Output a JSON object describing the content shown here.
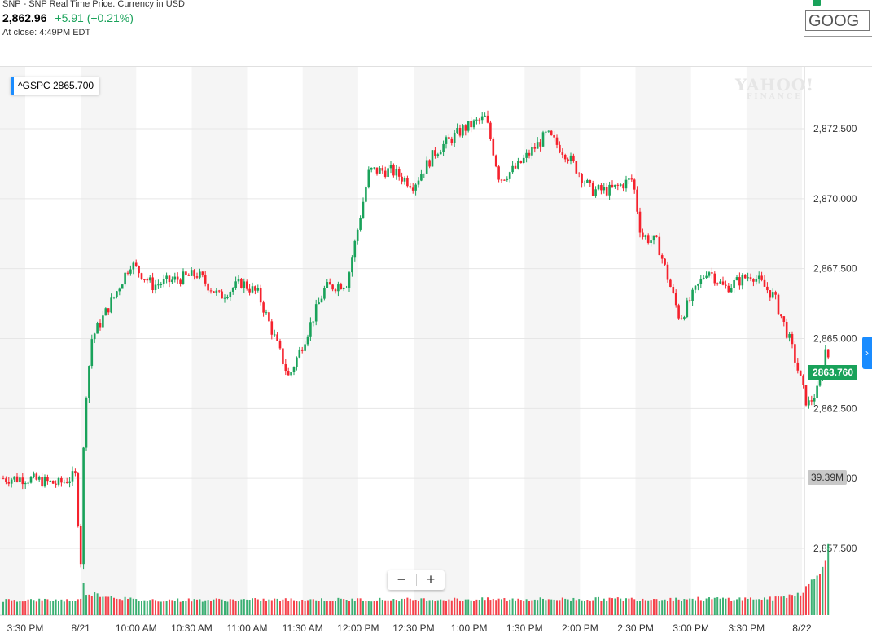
{
  "header": {
    "title_line": "SNP - SNP Real Time Price. Currency in USD",
    "price": "2,862.96",
    "change": "+5.91 (+0.21%)",
    "close_time": "At close: 4:49PM EDT"
  },
  "compare": {
    "symbol": "GOOG"
  },
  "legend": {
    "symbol": "^GSPC",
    "value": "2865.700"
  },
  "watermark": {
    "line1": "YAHOO!",
    "line2": "FINANCE"
  },
  "zoom": {
    "minus": "−",
    "plus": "+"
  },
  "side_tab": {
    "label": "›"
  },
  "tags": {
    "last_price": "2863.760",
    "volume": "39.39M"
  },
  "colors": {
    "up": "#19a25a",
    "down": "#f5222d",
    "accent": "#1a8cff",
    "band": "#f5f5f5"
  },
  "chart_data": {
    "type": "candlestick",
    "y_tick_labels": [
      "2,872.500",
      "2,870.000",
      "2,867.500",
      "2,865.000",
      "2,862.500",
      "2,860.000",
      "2,857.500"
    ],
    "y_ticks": [
      2872.5,
      2870.0,
      2867.5,
      2865.0,
      2862.5,
      2860.0,
      2857.5
    ],
    "x_tick_labels": [
      "3:30 PM",
      "8/21",
      "10:00 AM",
      "10:30 AM",
      "11:00 AM",
      "11:30 AM",
      "12:00 PM",
      "12:30 PM",
      "1:00 PM",
      "1:30 PM",
      "2:00 PM",
      "2:30 PM",
      "3:00 PM",
      "3:30 PM",
      "8/22"
    ],
    "ylim": [
      2855.1,
      2874.9
    ],
    "last_price": 2863.76,
    "legend_value": 2865.7,
    "volume_last": "39.39M",
    "price_path": [
      [
        0,
        2860.0
      ],
      [
        0.6,
        2859.8
      ],
      [
        0.9,
        2860.1
      ],
      [
        1.0,
        2857.0
      ],
      [
        1.07,
        2862.5
      ],
      [
        1.2,
        2865.0
      ],
      [
        1.6,
        2866.5
      ],
      [
        1.9,
        2867.7
      ],
      [
        2.3,
        2866.9
      ],
      [
        2.7,
        2867.1
      ],
      [
        3.1,
        2867.3
      ],
      [
        3.5,
        2866.5
      ],
      [
        3.9,
        2867.0
      ],
      [
        4.2,
        2866.6
      ],
      [
        4.5,
        2865.0
      ],
      [
        4.75,
        2863.6
      ],
      [
        5.1,
        2865.3
      ],
      [
        5.4,
        2866.8
      ],
      [
        5.8,
        2867.0
      ],
      [
        6.2,
        2871.0
      ],
      [
        6.6,
        2871.0
      ],
      [
        7.0,
        2870.5
      ],
      [
        7.4,
        2871.7
      ],
      [
        7.9,
        2872.5
      ],
      [
        8.3,
        2872.9
      ],
      [
        8.55,
        2870.7
      ],
      [
        8.85,
        2871.1
      ],
      [
        9.4,
        2872.3
      ],
      [
        9.75,
        2871.6
      ],
      [
        10.2,
        2870.3
      ],
      [
        10.55,
        2870.3
      ],
      [
        10.95,
        2870.7
      ],
      [
        11.1,
        2868.7
      ],
      [
        11.4,
        2868.4
      ],
      [
        11.8,
        2865.7
      ],
      [
        12.3,
        2867.5
      ],
      [
        12.6,
        2866.8
      ],
      [
        13.1,
        2867.3
      ],
      [
        13.5,
        2866.5
      ],
      [
        13.8,
        2864.8
      ],
      [
        14.1,
        2862.6
      ],
      [
        14.3,
        2863.2
      ],
      [
        14.45,
        2864.9
      ],
      [
        14.5,
        2863.8
      ]
    ],
    "volume_profile": [
      [
        0,
        0.2
      ],
      [
        1.0,
        0.2
      ],
      [
        1.02,
        0.55
      ],
      [
        1.07,
        0.3
      ],
      [
        2.0,
        0.2
      ],
      [
        13.5,
        0.22
      ],
      [
        14.0,
        0.3
      ],
      [
        14.3,
        0.55
      ],
      [
        14.5,
        1.0
      ]
    ]
  }
}
